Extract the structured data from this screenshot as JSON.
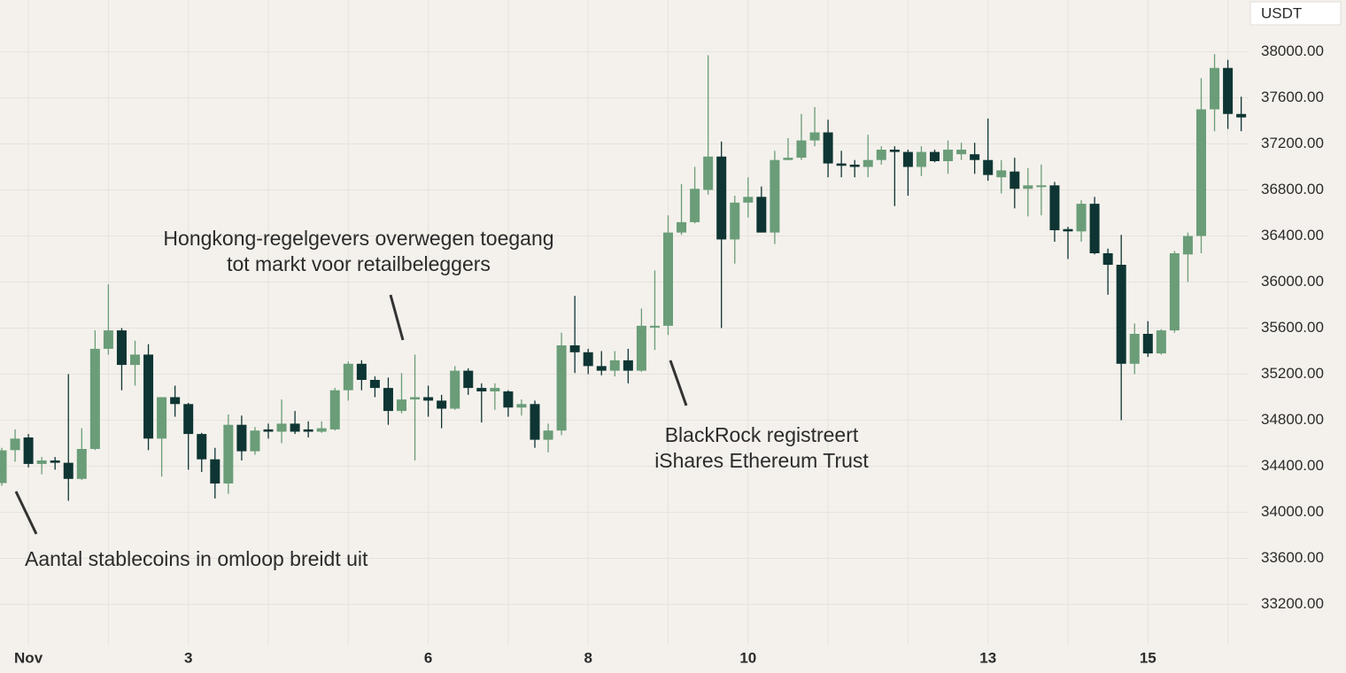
{
  "chart_data": {
    "type": "candlestick",
    "y_axis_label": "USDT",
    "up_color": "#6a9d78",
    "down_color": "#0e3533",
    "grid": true,
    "categories": [
      null,
      null,
      "Nov",
      null,
      null,
      null,
      null,
      null,
      null,
      null,
      null,
      null,
      null,
      null,
      "3",
      null,
      null,
      null,
      null,
      null,
      null,
      null,
      null,
      null,
      null,
      null,
      null,
      null,
      null,
      null,
      null,
      null,
      "6",
      null,
      null,
      null,
      null,
      null,
      null,
      null,
      null,
      null,
      null,
      null,
      "8",
      null,
      null,
      null,
      null,
      null,
      null,
      null,
      null,
      null,
      null,
      null,
      "10",
      null,
      null,
      null,
      null,
      null,
      null,
      null,
      null,
      null,
      null,
      null,
      null,
      null,
      null,
      null,
      null,
      null,
      "13",
      null,
      null,
      null,
      null,
      null,
      null,
      null,
      null,
      null,
      null,
      null,
      "15",
      null,
      null,
      null,
      null,
      null,
      null,
      null
    ],
    "open": [
      34254,
      34540,
      34650,
      34420,
      34450,
      34430,
      34290,
      34550,
      35420,
      35580,
      35280,
      35370,
      34640,
      35000,
      34940,
      34680,
      34460,
      34250,
      34760,
      34530,
      34720,
      34700,
      34770,
      34720,
      34700,
      34720,
      35060,
      35290,
      35150,
      35080,
      34880,
      34980,
      35000,
      34970,
      34900,
      35230,
      35080,
      35050,
      35050,
      34910,
      34940,
      34630,
      34710,
      35450,
      35390,
      35270,
      35230,
      35320,
      35230,
      35610,
      35620,
      36430,
      36520,
      36800,
      37090,
      36370,
      36690,
      36740,
      36430,
      37060,
      37080,
      37230,
      37300,
      37030,
      37020,
      37000,
      37060,
      37150,
      37130,
      37000,
      37130,
      37050,
      37110,
      37110,
      37060,
      36910,
      36960,
      36810,
      36830,
      36840,
      36460,
      36440,
      36680,
      36250,
      36150,
      35290,
      35550,
      35380,
      35580,
      36240,
      36400,
      37500,
      37860,
      37460
    ],
    "high": [
      34560,
      34720,
      34680,
      34480,
      34480,
      35200,
      34730,
      35580,
      35980,
      35600,
      35490,
      35460,
      35000,
      35100,
      34950,
      34690,
      34560,
      34850,
      34840,
      34740,
      34770,
      34980,
      34880,
      34790,
      34790,
      35080,
      35310,
      35320,
      35180,
      35170,
      35210,
      35370,
      35100,
      35020,
      35270,
      35250,
      35120,
      35120,
      35060,
      34980,
      34970,
      34770,
      35560,
      35880,
      35420,
      35400,
      35400,
      35420,
      35770,
      36100,
      36580,
      36850,
      37000,
      37970,
      37220,
      36750,
      36910,
      36830,
      37140,
      37250,
      37460,
      37520,
      37410,
      37140,
      37060,
      37280,
      37180,
      37180,
      37150,
      37180,
      37150,
      37230,
      37210,
      37210,
      37420,
      37060,
      37080,
      36990,
      37020,
      36870,
      36480,
      36710,
      36740,
      36290,
      36410,
      35640,
      35660,
      35590,
      36270,
      36430,
      37770,
      37980,
      37930,
      37610
    ],
    "low": [
      34230,
      34440,
      34390,
      34330,
      34370,
      34100,
      34280,
      34540,
      35370,
      35060,
      35100,
      34540,
      34310,
      34830,
      34370,
      34350,
      34120,
      34160,
      34450,
      34500,
      34640,
      34600,
      34680,
      34650,
      34690,
      34710,
      34970,
      35060,
      35000,
      34760,
      34860,
      34450,
      34830,
      34730,
      34890,
      35020,
      34780,
      34890,
      34830,
      34840,
      34560,
      34520,
      34670,
      35210,
      35200,
      35190,
      35180,
      35120,
      35220,
      35410,
      35540,
      36410,
      36510,
      36760,
      35600,
      36160,
      36560,
      36430,
      36330,
      37060,
      37060,
      37180,
      36910,
      36910,
      36910,
      36910,
      37020,
      36660,
      36750,
      36920,
      37040,
      36940,
      37060,
      36940,
      36880,
      36770,
      36640,
      36570,
      36580,
      36350,
      36200,
      36350,
      36240,
      35890,
      34800,
      35200,
      35350,
      35370,
      35560,
      36000,
      36250,
      37310,
      37330,
      37310
    ],
    "close": [
      34538,
      34640,
      34420,
      34450,
      34430,
      34290,
      34550,
      35420,
      35580,
      35280,
      35370,
      34640,
      35000,
      34940,
      34680,
      34460,
      34250,
      34760,
      34530,
      34710,
      34700,
      34770,
      34700,
      34700,
      34730,
      35060,
      35290,
      35150,
      35080,
      34880,
      34980,
      35000,
      34970,
      34900,
      35230,
      35080,
      35050,
      35080,
      34910,
      34940,
      34630,
      34710,
      35450,
      35390,
      35270,
      35230,
      35320,
      35230,
      35620,
      35620,
      36430,
      36520,
      36810,
      37090,
      36370,
      36690,
      36740,
      36430,
      37060,
      37080,
      37230,
      37300,
      37030,
      37010,
      37000,
      37060,
      37150,
      37130,
      37000,
      37130,
      37050,
      37150,
      37150,
      37060,
      36930,
      36970,
      36810,
      36840,
      36840,
      36450,
      36440,
      36680,
      36250,
      36150,
      35290,
      35550,
      35380,
      35580,
      36250,
      36400,
      37500,
      37860,
      37460,
      37430
    ],
    "ylim": [
      32850,
      38450
    ],
    "yticks": [
      {
        "value": 33200,
        "label": "33200.00"
      },
      {
        "value": 33600,
        "label": "33600.00"
      },
      {
        "value": 34000,
        "label": "34000.00"
      },
      {
        "value": 34400,
        "label": "34400.00"
      },
      {
        "value": 34800,
        "label": "34800.00"
      },
      {
        "value": 35200,
        "label": "35200.00"
      },
      {
        "value": 35600,
        "label": "35600.00"
      },
      {
        "value": 36000,
        "label": "36000.00"
      },
      {
        "value": 36400,
        "label": "36400.00"
      },
      {
        "value": 36800,
        "label": "36800.00"
      },
      {
        "value": 37200,
        "label": "37200.00"
      },
      {
        "value": 37600,
        "label": "37600.00"
      },
      {
        "value": 38000,
        "label": "38000.00"
      }
    ],
    "annotations": [
      {
        "lines": [
          "Aantal stablecoins in omloop breidt uit"
        ]
      },
      {
        "lines": [
          "Hongkong-regelgevers overwegen toegang",
          "tot markt voor retailbeleggers"
        ]
      },
      {
        "lines": [
          "BlackRock registreert",
          "iShares Ethereum Trust"
        ]
      }
    ]
  }
}
